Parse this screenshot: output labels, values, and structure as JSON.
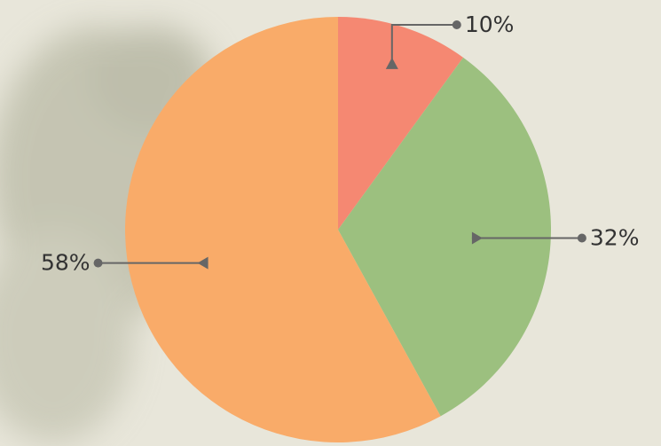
{
  "chart_data": {
    "type": "pie",
    "values": [
      10,
      32,
      58
    ],
    "value_labels": [
      "10%",
      "32%",
      "58%"
    ],
    "colors": [
      "#f58872",
      "#9cc07f",
      "#f9ab69"
    ]
  }
}
